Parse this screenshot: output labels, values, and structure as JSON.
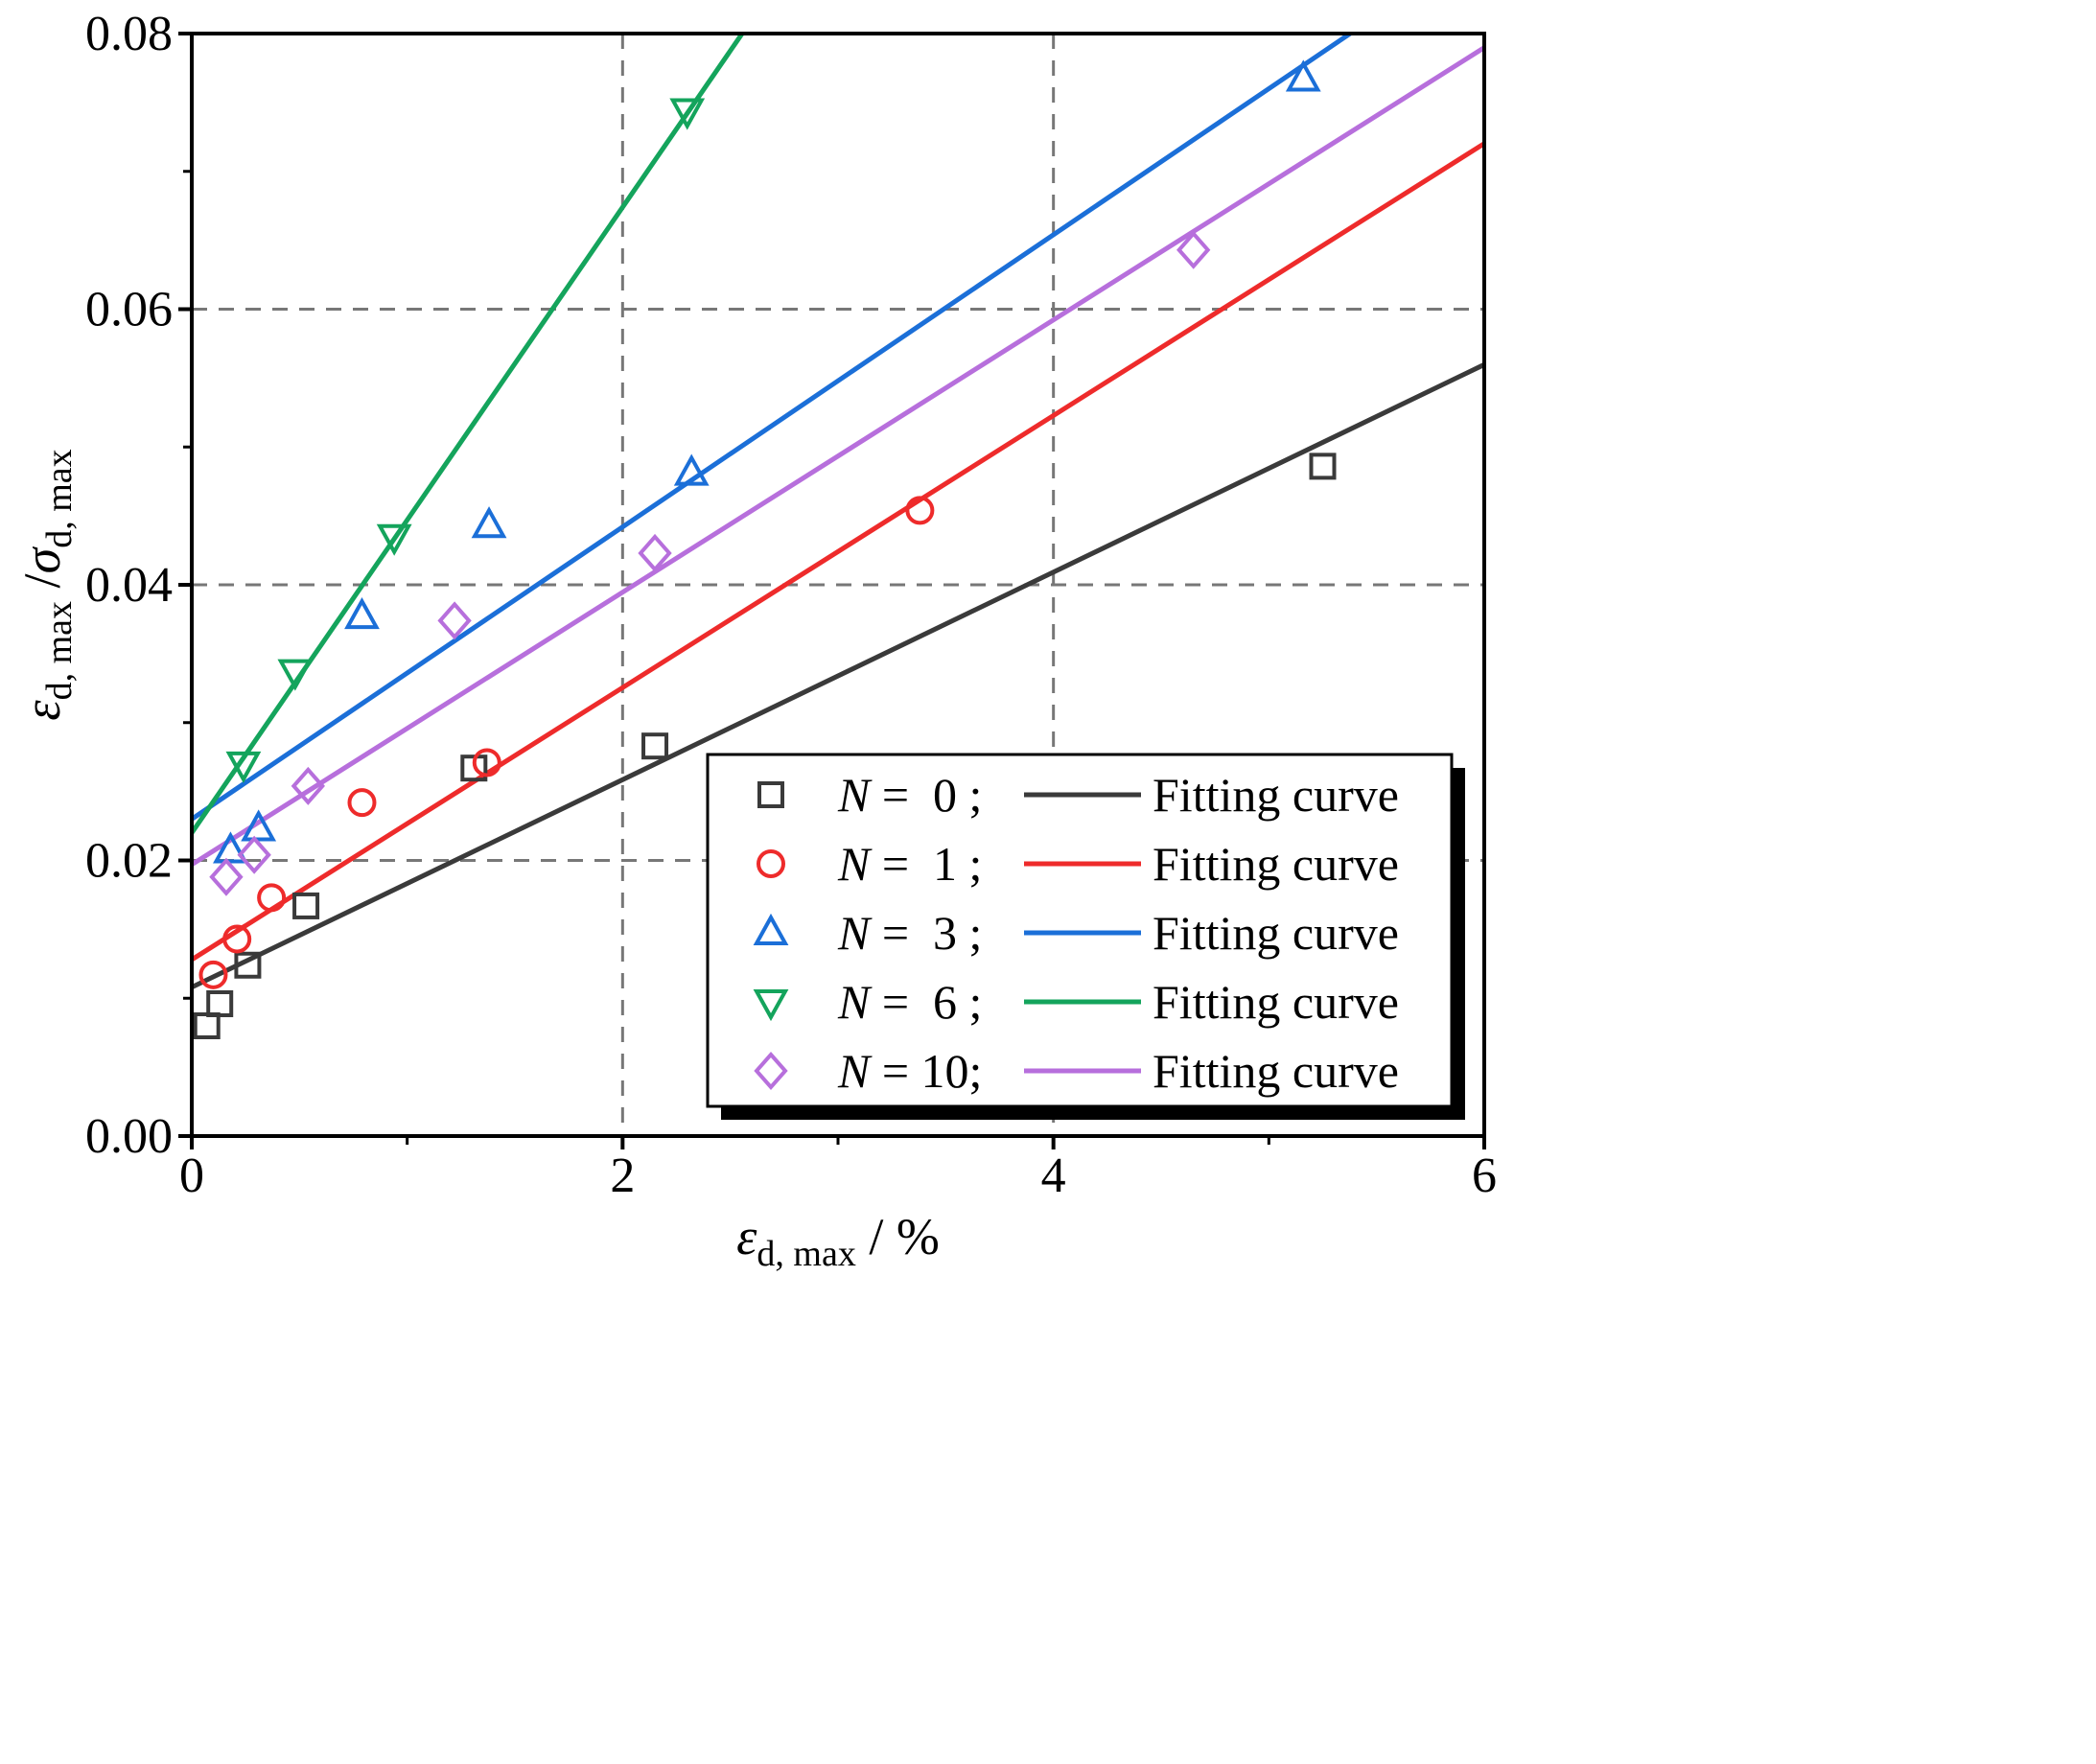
{
  "chart_data": {
    "type": "scatter",
    "title": "",
    "xlabel": {
      "main": "ε",
      "sub": "d, max",
      "suffix": " / %"
    },
    "ylabel": {
      "main1": "ε",
      "sub1": "d, max",
      "slash": " /",
      "main2": "σ",
      "sub2": "d, max"
    },
    "xlim": [
      0,
      6
    ],
    "ylim": [
      0,
      0.08
    ],
    "xticks": [
      0,
      2,
      4,
      6
    ],
    "xtick_labels": [
      "0",
      "2",
      "4",
      "6"
    ],
    "xminor": [
      1,
      3,
      5
    ],
    "yticks": [
      0,
      0.02,
      0.04,
      0.06,
      0.08
    ],
    "ytick_labels": [
      "0.00",
      "0.02",
      "0.04",
      "0.06",
      "0.08"
    ],
    "yminor": [
      0.01,
      0.03,
      0.05,
      0.07
    ],
    "grid": true,
    "legend_position": "bottom-right",
    "series": [
      {
        "name": "N =  0 ;",
        "n": "0",
        "marker": "square",
        "color": "#3a3a3a",
        "x": [
          0.07,
          0.13,
          0.26,
          0.53,
          1.31,
          2.15,
          5.25
        ],
        "y": [
          0.008,
          0.0096,
          0.0124,
          0.0167,
          0.0267,
          0.0283,
          0.0486
        ],
        "fit": [
          0.0108,
          0.00753
        ],
        "fit_label": "Fitting curve"
      },
      {
        "name": "N =  1 ;",
        "n": "1",
        "marker": "circle",
        "color": "#ee2b2b",
        "x": [
          0.1,
          0.21,
          0.37,
          0.79,
          1.37,
          3.38
        ],
        "y": [
          0.0117,
          0.0143,
          0.0173,
          0.0242,
          0.0271,
          0.0454
        ],
        "fit": [
          0.0128,
          0.00987
        ],
        "fit_label": "Fitting curve"
      },
      {
        "name": "N =  3 ;",
        "n": "3",
        "marker": "triangle-up",
        "color": "#1b6fd8",
        "x": [
          0.18,
          0.31,
          0.79,
          1.38,
          2.32,
          5.16
        ],
        "y": [
          0.0207,
          0.0223,
          0.0377,
          0.0443,
          0.0481,
          0.0767
        ],
        "fit": [
          0.023,
          0.0106
        ],
        "fit_label": "Fitting curve"
      },
      {
        "name": "N =  6 ;",
        "n": "6",
        "marker": "triangle-down",
        "color": "#14a45c",
        "x": [
          0.24,
          0.48,
          0.94,
          2.3
        ],
        "y": [
          0.027,
          0.0337,
          0.0435,
          0.0744
        ],
        "fit": [
          0.022,
          0.0227
        ],
        "fit_label": "Fitting curve"
      },
      {
        "name": "N = 10;",
        "n": "10",
        "marker": "diamond",
        "color": "#b76fdc",
        "x": [
          0.16,
          0.29,
          0.54,
          1.22,
          2.15,
          4.65
        ],
        "y": [
          0.0188,
          0.0204,
          0.0254,
          0.0374,
          0.0423,
          0.0643
        ],
        "fit": [
          0.0197,
          0.00988
        ],
        "fit_label": "Fitting curve"
      }
    ]
  }
}
